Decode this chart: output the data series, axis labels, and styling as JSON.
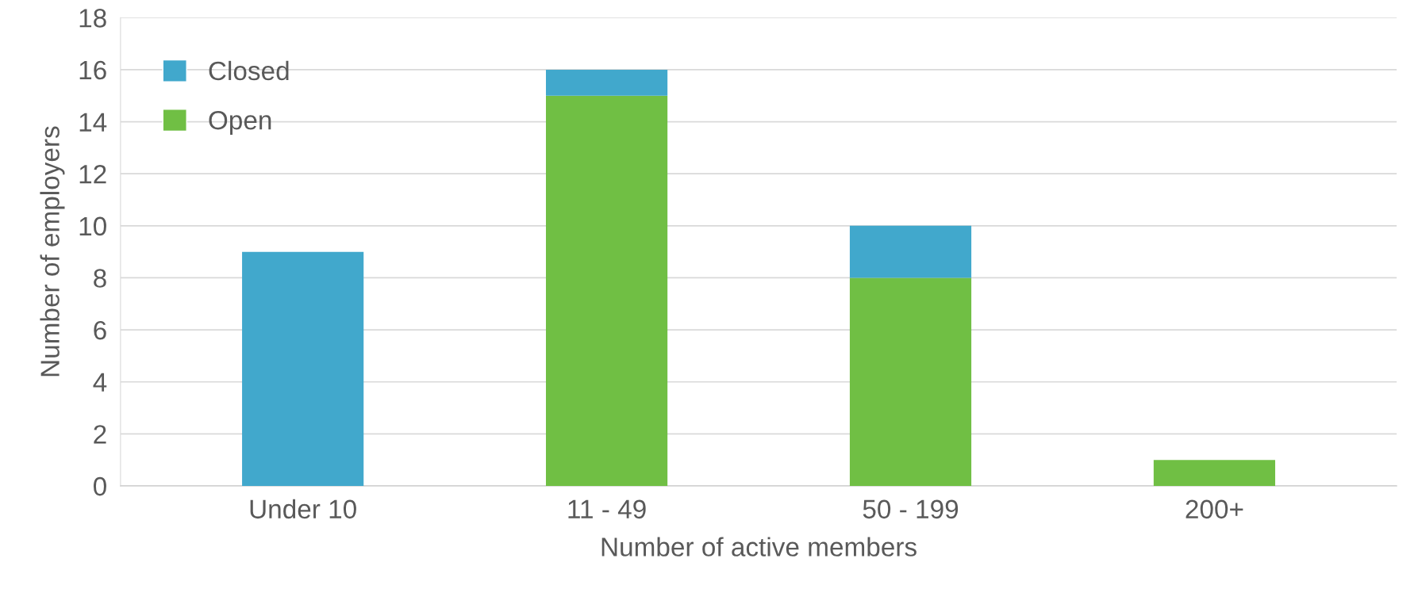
{
  "chart_data": {
    "type": "bar",
    "stacked": true,
    "xlabel": "Number of active members",
    "ylabel": "Number of employers",
    "categories": [
      "Under 10",
      "11 - 49",
      "50 - 199",
      "200+"
    ],
    "series": [
      {
        "name": "Open",
        "color": "#70bf44",
        "values": [
          null,
          15,
          8,
          1
        ]
      },
      {
        "name": "Closed",
        "color": "#41a8cc",
        "values": [
          9,
          1,
          2,
          null
        ]
      }
    ],
    "ylim": [
      0,
      18
    ],
    "yticks": [
      0,
      2,
      4,
      6,
      8,
      10,
      12,
      14,
      16,
      18
    ],
    "grid": "y",
    "legend": "top left"
  }
}
